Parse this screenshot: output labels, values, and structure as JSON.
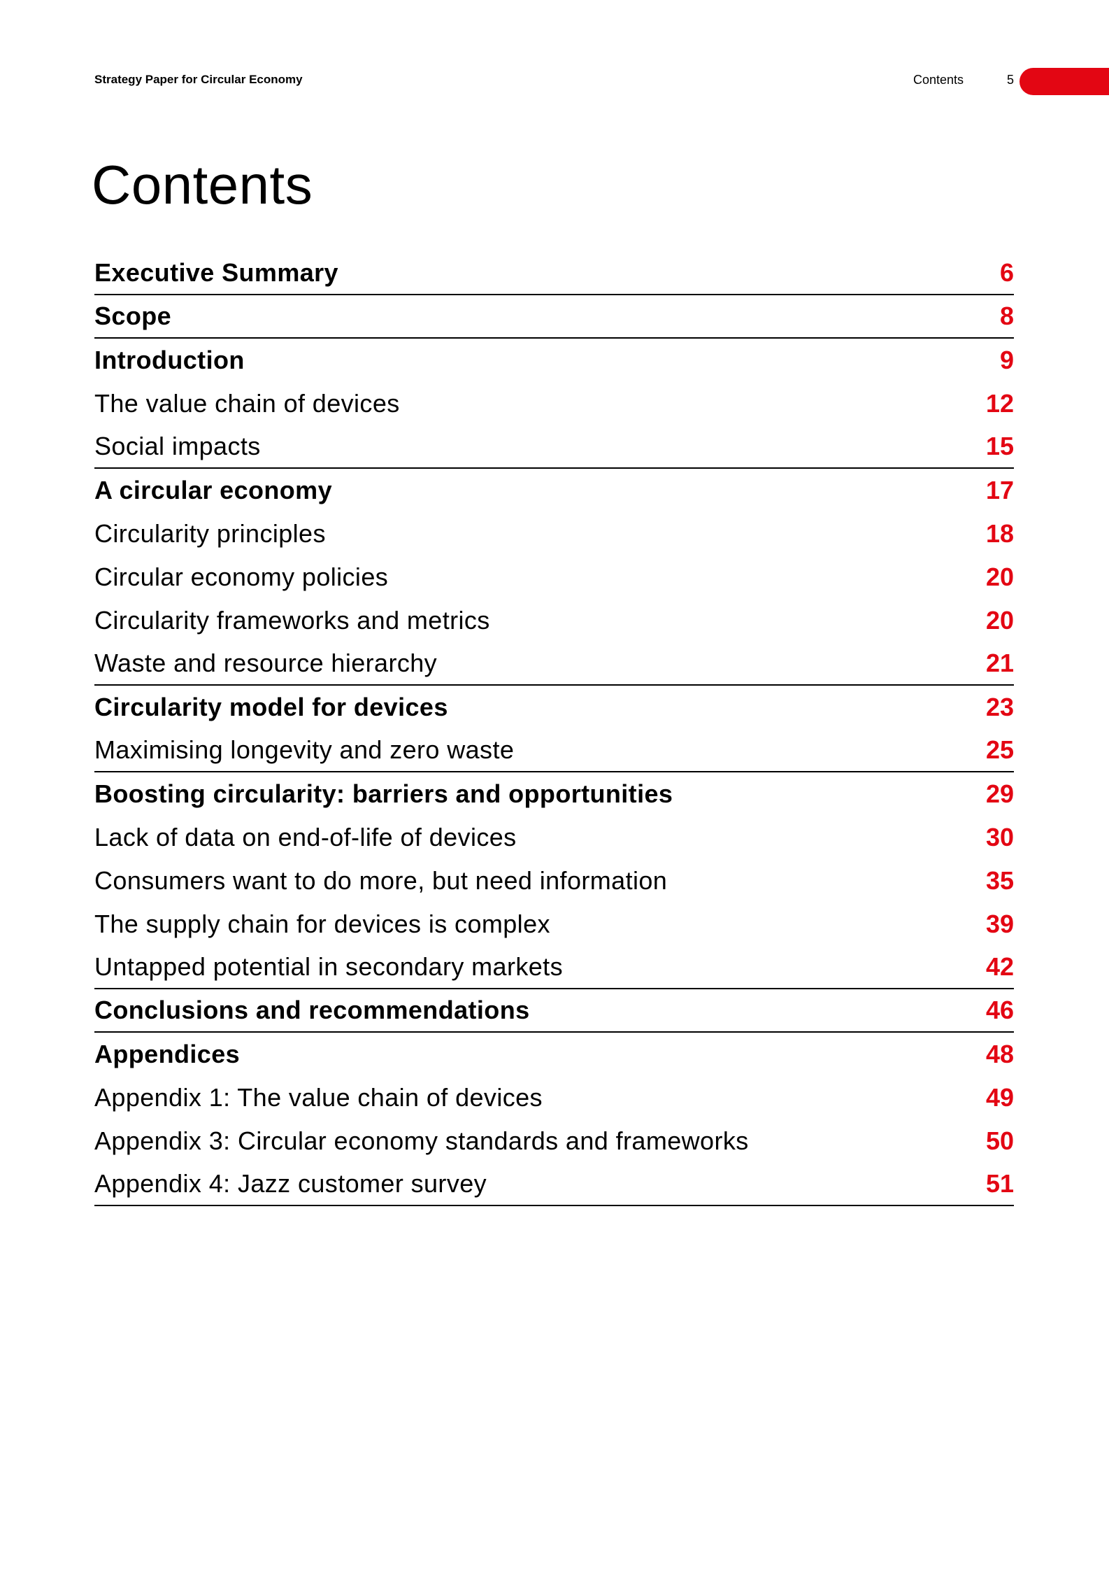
{
  "header": {
    "document_title": "Strategy Paper for Circular Economy",
    "section_label": "Contents",
    "page_number": "5",
    "accent_color": "#e30613"
  },
  "page_title": "Contents",
  "toc": {
    "page_color": "#e30613",
    "entries": [
      {
        "label": "Executive Summary",
        "page": "6",
        "level": "heading"
      },
      {
        "label": "Scope",
        "page": "8",
        "level": "heading"
      },
      {
        "label": "Introduction",
        "page": "9",
        "level": "heading"
      },
      {
        "label": "The value chain of devices",
        "page": "12",
        "level": "subheading"
      },
      {
        "label": "Social impacts",
        "page": "15",
        "level": "subheading"
      },
      {
        "label": "A circular economy",
        "page": "17",
        "level": "heading"
      },
      {
        "label": "Circularity principles",
        "page": "18",
        "level": "subheading"
      },
      {
        "label": "Circular economy policies",
        "page": "20",
        "level": "subheading"
      },
      {
        "label": "Circularity frameworks and metrics",
        "page": "20",
        "level": "subheading"
      },
      {
        "label": "Waste and resource hierarchy",
        "page": "21",
        "level": "subheading"
      },
      {
        "label": "Circularity model for devices",
        "page": "23",
        "level": "heading"
      },
      {
        "label": "Maximising longevity and zero waste",
        "page": "25",
        "level": "subheading"
      },
      {
        "label": "Boosting circularity: barriers and opportunities",
        "page": "29",
        "level": "heading"
      },
      {
        "label": "Lack of data on end-of-life of devices",
        "page": "30",
        "level": "subheading"
      },
      {
        "label": "Consumers want to do more, but need information",
        "page": "35",
        "level": "subheading"
      },
      {
        "label": "The supply chain for devices is complex",
        "page": "39",
        "level": "subheading"
      },
      {
        "label": "Untapped potential in secondary markets",
        "page": "42",
        "level": "subheading"
      },
      {
        "label": "Conclusions and recommendations",
        "page": "46",
        "level": "heading"
      },
      {
        "label": "Appendices",
        "page": "48",
        "level": "heading"
      },
      {
        "label": "Appendix 1: The value chain of devices",
        "page": "49",
        "level": "subheading"
      },
      {
        "label": "Appendix 3: Circular economy standards and frameworks",
        "page": "50",
        "level": "subheading"
      },
      {
        "label": "Appendix 4: Jazz customer survey",
        "page": "51",
        "level": "subheading"
      }
    ]
  }
}
